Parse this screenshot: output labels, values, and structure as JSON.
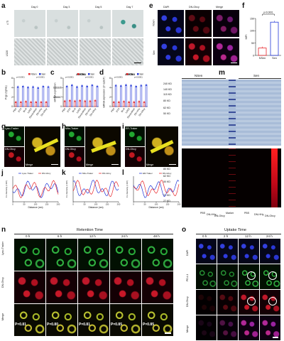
{
  "panels": {
    "a": "a",
    "b": "b",
    "c": "c",
    "d": "d",
    "e": "e",
    "f": "f",
    "g": "g",
    "h": "h",
    "i": "i",
    "j": "j",
    "k": "k",
    "l": "l",
    "m": "m",
    "n": "n",
    "o": "o"
  },
  "a": {
    "days": [
      "Day 0",
      "Day 3",
      "Day 5",
      "Day 7"
    ],
    "rows": [
      "4 Tl",
      "LS20"
    ]
  },
  "e": {
    "cols": [
      "DAPI",
      "DN-Ghcy",
      "Merge"
    ],
    "rows": [
      "NSen",
      "Sen"
    ]
  },
  "f": {
    "pvalue": "p<0.0001",
    "ylabel": "MFI",
    "categories": [
      "NSen",
      "Sen"
    ]
  },
  "g": {
    "labels": [
      "Lyso-Traker",
      "DN-Ghcy",
      "Merge"
    ]
  },
  "h": {
    "labels": [
      "Mito-Traker",
      "DN-Ghcy",
      "Merge"
    ]
  },
  "i": {
    "labels": [
      "ER-Traker",
      "DN-Ghcy",
      "Merge"
    ]
  },
  "j": {
    "legend": [
      "Lyso-Traker",
      "DN-Ghcy"
    ],
    "xlabel": "Distance (nm)",
    "ylabel": "FL intensity (×10³)"
  },
  "k": {
    "legend": [
      "Mito-Traker",
      "DN-Ghcy"
    ],
    "xlabel": "Distance (nm)",
    "ylabel": "FL intensity (×10³)"
  },
  "l": {
    "legend": [
      "ER-Traker",
      "DN-Ghcy"
    ],
    "xlabel": "Distance (nm)",
    "ylabel": "FL intensity (×10³)"
  },
  "m": {
    "groups": [
      "NSen",
      "Sen"
    ],
    "marker_weights": [
      "240 KD",
      "140 KD",
      "115 KD",
      "80 KD",
      "62 KD",
      "50 KD",
      "31 KD",
      "27 KD"
    ],
    "lanes": [
      "PBS",
      "DN-HHy",
      "DN-Ghcy",
      "Marker",
      "PBS",
      "DN-HHy",
      "DN-Ghcy"
    ]
  },
  "n": {
    "title": "Retention Time",
    "times": [
      "0 h",
      "6 h",
      "12 h",
      "24 h",
      "48 h"
    ],
    "rows": [
      "Lyso-Traker",
      "DN-Ghcy",
      "Merge"
    ],
    "pvals": [
      "P=0.81",
      "P=0.80",
      "P=0.81",
      "P=0.85",
      "P=0.85"
    ]
  },
  "o": {
    "title": "Uptake Time",
    "times": [
      "0 h",
      "2 h",
      "12 h",
      "24 h"
    ],
    "rows": [
      "DAPI",
      "PD-L1",
      "DN-Ghcy",
      "Merge"
    ]
  },
  "chart_data": [
    {
      "type": "bar",
      "panel": "b",
      "ylabel": "P-gp (ng/mL)",
      "categories": [
        "PBS",
        "ETO",
        "BLM",
        "H2O2",
        "Doxorubicin",
        "DN-HHy",
        "DN-Ghcy"
      ],
      "series": [
        {
          "name": "NSen",
          "values": [
            1.0,
            1.0,
            1.1,
            1.0,
            1.0,
            1.0,
            1.0
          ]
        },
        {
          "name": "Sen",
          "values": [
            4.2,
            4.3,
            4.1,
            4.2,
            4.0,
            4.3,
            4.2
          ]
        }
      ],
      "annotations": [
        "p<0.0001",
        "p<0.0001"
      ],
      "ylim": [
        0,
        6
      ]
    },
    {
      "type": "bar",
      "panel": "c",
      "title": "ABCB1",
      "ylabel": "mRNA expression",
      "categories": [
        "PBS",
        "ETO",
        "BLM",
        "H2O2",
        "Doxorubicin",
        "DN-HHy",
        "DN-Ghcy"
      ],
      "series": [
        {
          "name": "NSen",
          "values": [
            1.0,
            1.1,
            1.0,
            1.1,
            1.0,
            1.0,
            1.1
          ]
        },
        {
          "name": "Sen",
          "values": [
            3.6,
            3.8,
            3.5,
            3.7,
            3.6,
            3.8,
            3.6
          ]
        }
      ],
      "annotations": [
        "p<0.0001",
        "p<0.0001"
      ],
      "ylim": [
        0,
        5
      ]
    },
    {
      "type": "bar",
      "panel": "d",
      "title": "ABCB4",
      "ylabel": "mRNA expression (2^-ΔΔCT)",
      "categories": [
        "PBS",
        "ETO",
        "BLM",
        "H2O2",
        "Doxorubicin",
        "DN-HHy",
        "DN-Ghcy"
      ],
      "series": [
        {
          "name": "NSen",
          "values": [
            1.0,
            1.0,
            1.1,
            1.0,
            1.0,
            1.1,
            1.0
          ]
        },
        {
          "name": "Sen",
          "values": [
            4.5,
            4.4,
            4.6,
            4.5,
            4.3,
            4.5,
            4.6
          ]
        }
      ],
      "annotations": [
        "p<0.0001",
        "p<0.0001"
      ],
      "ylim": [
        0,
        6
      ]
    },
    {
      "type": "bar",
      "panel": "f",
      "ylabel": "MFI",
      "categories": [
        "NSen",
        "Sen"
      ],
      "values": [
        30,
        135
      ],
      "ylim": [
        0,
        150
      ],
      "annotations": [
        "p<0.0001"
      ]
    }
  ],
  "colors": {
    "nsen": "#e8262a",
    "sen": "#2338d8"
  }
}
